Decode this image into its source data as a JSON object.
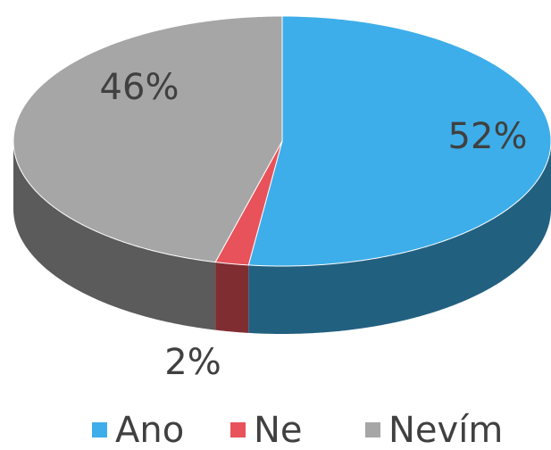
{
  "chart_data": {
    "type": "pie",
    "categories": [
      "Ano",
      "Ne",
      "Nevím"
    ],
    "values": [
      52,
      2,
      46
    ],
    "value_labels": [
      "52%",
      "2%",
      "46%"
    ],
    "colors": [
      "#3daee9",
      "#e8525a",
      "#a6a6a6"
    ],
    "legend": "bottom"
  }
}
